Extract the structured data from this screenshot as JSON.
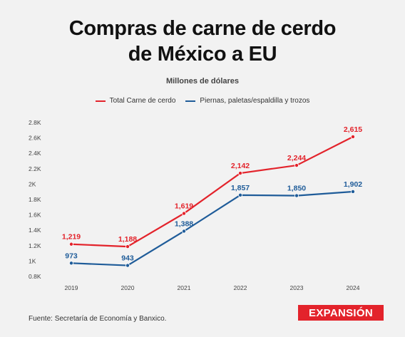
{
  "header": {
    "title_line1": "Compras de carne de cerdo",
    "title_line2": "de México a EU",
    "subtitle": "Millones de dólares"
  },
  "footer": {
    "source": "Fuente: Secretaría de Economía y Banxico.",
    "logo_text": "EXPANSIÓN"
  },
  "colors": {
    "background": "#f2f2f2",
    "red": "#e3232b",
    "blue": "#1f5c99",
    "grid": "#dddddd"
  },
  "chart_data": {
    "type": "line",
    "title": "Compras de carne de cerdo de México a EU",
    "ylabel": "Millones de dólares",
    "x": [
      "2019",
      "2020",
      "2021",
      "2022",
      "2023",
      "2024"
    ],
    "ylim": [
      800,
      2800
    ],
    "yticks": [
      800,
      1000,
      1200,
      1400,
      1600,
      1800,
      2000,
      2200,
      2400,
      2600,
      2800
    ],
    "ytick_labels": [
      "0.8K",
      "1K",
      "1.2K",
      "1.4K",
      "1.6K",
      "1.8K",
      "2K",
      "2.2K",
      "2.4K",
      "2.6K",
      "2.8K"
    ],
    "grid": false,
    "legend_position": "top-center",
    "series": [
      {
        "name": "Total Carne de cerdo",
        "color": "#e3232b",
        "values": [
          1219,
          1188,
          1619,
          2142,
          2244,
          2615
        ],
        "labels": [
          "1,219",
          "1,188",
          "1,619",
          "2,142",
          "2,244",
          "2,615"
        ]
      },
      {
        "name": "Piernas, paletas/espaldilla y trozos",
        "color": "#1f5c99",
        "values": [
          973,
          943,
          1388,
          1857,
          1850,
          1902
        ],
        "labels": [
          "973",
          "943",
          "1,388",
          "1,857",
          "1,850",
          "1,902"
        ]
      }
    ]
  }
}
